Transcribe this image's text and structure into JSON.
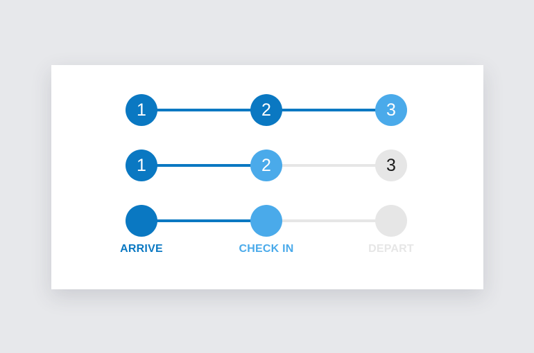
{
  "colors": {
    "background": "#e7e8eb",
    "card": "#ffffff",
    "completed": "#0a78c2",
    "current": "#4aaaea",
    "pending": "#e6e6e6",
    "text_light": "#ffffff",
    "text_dark": "#1a1a1a"
  },
  "steppers": [
    {
      "steps": [
        {
          "label": "1",
          "state": "completed"
        },
        {
          "label": "2",
          "state": "completed"
        },
        {
          "label": "3",
          "state": "current"
        }
      ],
      "connectors": [
        "completed",
        "completed"
      ]
    },
    {
      "steps": [
        {
          "label": "1",
          "state": "completed"
        },
        {
          "label": "2",
          "state": "current"
        },
        {
          "label": "3",
          "state": "pending"
        }
      ],
      "connectors": [
        "completed",
        "pending"
      ]
    },
    {
      "steps": [
        {
          "label": "",
          "state": "completed"
        },
        {
          "label": "",
          "state": "current"
        },
        {
          "label": "",
          "state": "pending"
        }
      ],
      "connectors": [
        "completed",
        "pending"
      ],
      "step_labels": [
        {
          "text": "ARRIVE",
          "state": "completed"
        },
        {
          "text": "CHECK IN",
          "state": "current"
        },
        {
          "text": "DEPART",
          "state": "pending"
        }
      ]
    }
  ]
}
